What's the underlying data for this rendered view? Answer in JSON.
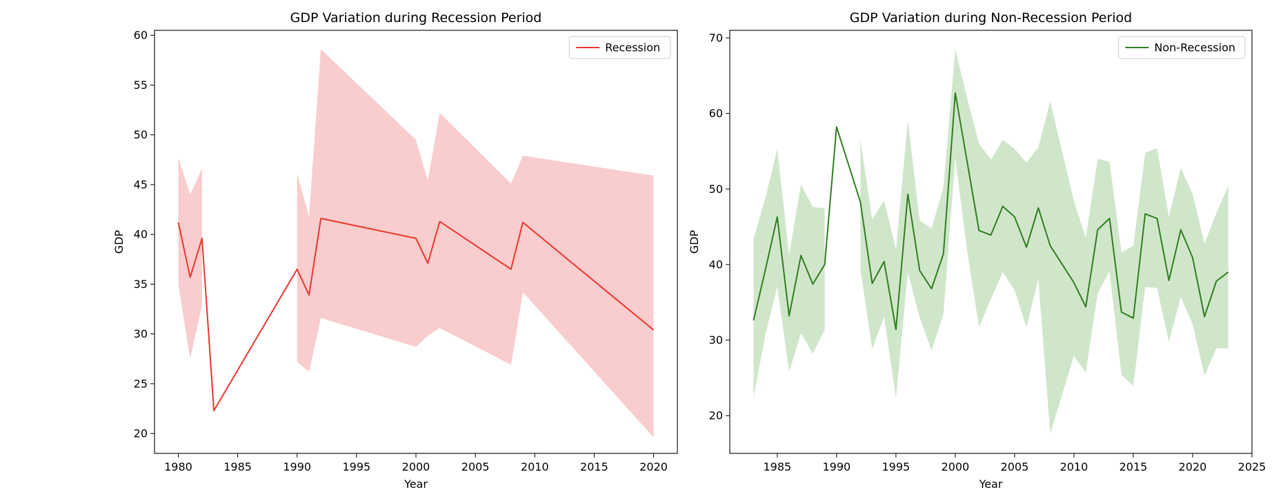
{
  "chart_data": [
    {
      "type": "line",
      "title": "GDP Variation during Recession Period",
      "xlabel": "Year",
      "ylabel": "GDP",
      "xlim": [
        1978,
        2022
      ],
      "ylim": [
        18,
        60.5
      ],
      "xticks": [
        1980,
        1985,
        1990,
        1995,
        2000,
        2005,
        2010,
        2015,
        2020
      ],
      "yticks": [
        20,
        25,
        30,
        35,
        40,
        45,
        50,
        55,
        60
      ],
      "grid": false,
      "legend": "top-right",
      "color": "#e8372c",
      "band_color": "#f4a3a6",
      "segments": [
        {
          "x": [
            1980,
            1981,
            1982
          ],
          "upper": [
            47.7,
            44.0,
            46.6
          ],
          "lower": [
            35.0,
            27.5,
            32.9
          ]
        },
        {
          "x": [
            1990,
            1991,
            1992,
            2000,
            2001,
            2002,
            2008,
            2009,
            2020
          ],
          "upper": [
            46.1,
            41.8,
            58.6,
            49.5,
            45.4,
            52.2,
            45.1,
            47.9,
            45.9
          ],
          "lower": [
            27.2,
            26.2,
            31.6,
            28.7,
            29.8,
            30.6,
            26.9,
            34.2,
            19.6
          ]
        }
      ],
      "series": [
        {
          "name": "Recession",
          "x": [
            1980,
            1981,
            1982,
            1983,
            1990,
            1991,
            1992,
            2000,
            2001,
            2002,
            2008,
            2009,
            2020
          ],
          "values": [
            41.2,
            35.7,
            39.6,
            22.3,
            36.5,
            33.9,
            41.6,
            39.6,
            37.1,
            41.3,
            36.5,
            41.2,
            30.4
          ]
        }
      ]
    },
    {
      "type": "line",
      "title": "GDP Variation during Non-Recession Period",
      "xlabel": "Year",
      "ylabel": "GDP",
      "xlim": [
        1981,
        2025
      ],
      "ylim": [
        15,
        71
      ],
      "xticks": [
        1985,
        1990,
        1995,
        2000,
        2005,
        2010,
        2015,
        2020,
        2025
      ],
      "yticks": [
        20,
        30,
        40,
        50,
        60,
        70
      ],
      "grid": false,
      "legend": "top-right",
      "color": "#2e7d1e",
      "band_color": "#a9d2a0",
      "segments": [
        {
          "x": [
            1983,
            1984,
            1985,
            1986,
            1987,
            1988,
            1989
          ],
          "upper": [
            43.4,
            48.8,
            55.3,
            41.3,
            50.6,
            47.6,
            47.5
          ],
          "lower": [
            22.4,
            30.7,
            37.1,
            25.8,
            30.9,
            28.2,
            31.4
          ]
        },
        {
          "x": [
            1992,
            1993,
            1994,
            1995,
            1996,
            1997,
            1998,
            1999,
            2000,
            2001,
            2002,
            2003,
            2004,
            2005,
            2006,
            2007,
            2008,
            2010,
            2011,
            2012,
            2013,
            2014,
            2015,
            2016,
            2017,
            2018,
            2019,
            2020,
            2021,
            2022,
            2023
          ],
          "upper": [
            56.6,
            46.0,
            48.5,
            42.0,
            59.1,
            45.8,
            44.8,
            50.2,
            68.5,
            62.0,
            56.0,
            53.9,
            56.5,
            55.3,
            53.5,
            55.5,
            61.6,
            48.4,
            43.5,
            54.0,
            53.6,
            41.6,
            42.5,
            54.8,
            55.4,
            46.3,
            52.8,
            49.3,
            42.8,
            46.8,
            50.4
          ],
          "lower": [
            39.4,
            28.8,
            33.1,
            22.3,
            38.9,
            33.0,
            28.6,
            33.4,
            54.1,
            41.8,
            31.7,
            35.4,
            39.0,
            36.6,
            31.7,
            38.1,
            17.6,
            27.9,
            25.7,
            36.2,
            39.1,
            25.4,
            23.9,
            37.0,
            36.9,
            29.8,
            35.7,
            32.1,
            25.3,
            28.9,
            28.9
          ]
        }
      ],
      "series": [
        {
          "name": "Non-Recession",
          "x": [
            1983,
            1984,
            1985,
            1986,
            1987,
            1988,
            1989,
            1990,
            1992,
            1993,
            1994,
            1995,
            1996,
            1997,
            1998,
            1999,
            2000,
            2002,
            2003,
            2004,
            2005,
            2006,
            2007,
            2008,
            2010,
            2011,
            2012,
            2013,
            2014,
            2015,
            2016,
            2017,
            2018,
            2019,
            2020,
            2021,
            2022,
            2023
          ],
          "values": [
            32.6,
            39.3,
            46.3,
            33.2,
            41.2,
            37.4,
            40.0,
            58.2,
            48.3,
            37.5,
            40.4,
            31.4,
            49.3,
            39.2,
            36.8,
            41.4,
            62.7,
            44.5,
            43.9,
            47.7,
            46.3,
            42.3,
            47.5,
            42.5,
            37.6,
            34.4,
            44.6,
            46.1,
            33.7,
            32.9,
            46.7,
            46.1,
            37.9,
            44.6,
            40.9,
            33.1,
            37.8,
            39.0
          ]
        }
      ]
    }
  ]
}
